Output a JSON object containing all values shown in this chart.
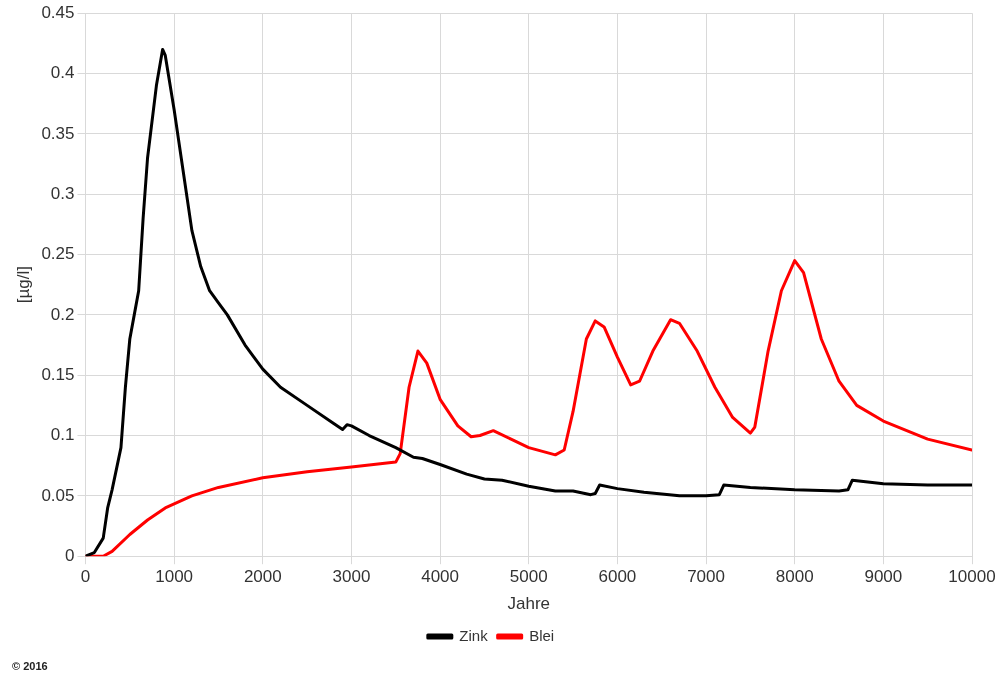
{
  "chart_data": {
    "type": "line",
    "xlabel": "Jahre",
    "ylabel": "[µg/l]",
    "xlim": [
      0,
      10000
    ],
    "xticks": [
      0,
      1000,
      2000,
      3000,
      4000,
      5000,
      6000,
      7000,
      8000,
      9000,
      10000
    ],
    "ylim": [
      0,
      0.45
    ],
    "yticks": [
      0,
      0.05,
      0.1,
      0.15,
      0.2,
      0.25,
      0.3,
      0.35,
      0.4,
      0.45
    ],
    "grid": true,
    "legend": "bottom",
    "marker": "none",
    "line_style": "solid",
    "annotations": [
      "© 2016"
    ],
    "series": [
      {
        "name": "Zink",
        "color": "#000000",
        "x": [
          0,
          100,
          200,
          250,
          300,
          400,
          450,
          500,
          550,
          600,
          650,
          700,
          800,
          870,
          900,
          1000,
          1100,
          1200,
          1300,
          1400,
          1500,
          1600,
          1800,
          2000,
          2200,
          2500,
          2800,
          2900,
          2950,
          3000,
          3200,
          3500,
          3700,
          3800,
          4000,
          4300,
          4500,
          4700,
          5000,
          5300,
          5500,
          5700,
          5750,
          5800,
          6000,
          6300,
          6700,
          7000,
          7150,
          7200,
          7500,
          8000,
          8500,
          8600,
          8650,
          9000,
          9500,
          10000
        ],
        "values": [
          0,
          0.003,
          0.015,
          0.04,
          0.055,
          0.09,
          0.14,
          0.18,
          0.2,
          0.22,
          0.28,
          0.33,
          0.39,
          0.42,
          0.415,
          0.37,
          0.32,
          0.27,
          0.24,
          0.22,
          0.21,
          0.2,
          0.175,
          0.155,
          0.14,
          0.125,
          0.11,
          0.105,
          0.109,
          0.108,
          0.1,
          0.09,
          0.082,
          0.081,
          0.076,
          0.068,
          0.064,
          0.063,
          0.058,
          0.054,
          0.054,
          0.051,
          0.052,
          0.059,
          0.056,
          0.053,
          0.05,
          0.05,
          0.051,
          0.059,
          0.057,
          0.055,
          0.054,
          0.055,
          0.063,
          0.06,
          0.059,
          0.059
        ]
      },
      {
        "name": "Blei",
        "color": "#ff0000",
        "x": [
          0,
          200,
          300,
          500,
          700,
          900,
          1200,
          1500,
          2000,
          2500,
          3000,
          3500,
          3550,
          3650,
          3750,
          3850,
          4000,
          4200,
          4350,
          4450,
          4600,
          4800,
          5000,
          5300,
          5400,
          5500,
          5650,
          5750,
          5850,
          6000,
          6150,
          6250,
          6400,
          6600,
          6700,
          6900,
          7100,
          7300,
          7500,
          7550,
          7700,
          7850,
          8000,
          8100,
          8300,
          8500,
          8700,
          9000,
          9500,
          10000
        ],
        "values": [
          0,
          0,
          0.004,
          0.018,
          0.03,
          0.04,
          0.05,
          0.057,
          0.065,
          0.07,
          0.074,
          0.078,
          0.085,
          0.14,
          0.17,
          0.16,
          0.13,
          0.108,
          0.099,
          0.1,
          0.104,
          0.097,
          0.09,
          0.084,
          0.088,
          0.12,
          0.18,
          0.195,
          0.19,
          0.165,
          0.142,
          0.145,
          0.17,
          0.196,
          0.193,
          0.17,
          0.14,
          0.115,
          0.102,
          0.107,
          0.17,
          0.22,
          0.245,
          0.235,
          0.18,
          0.145,
          0.125,
          0.112,
          0.097,
          0.088
        ]
      }
    ]
  }
}
